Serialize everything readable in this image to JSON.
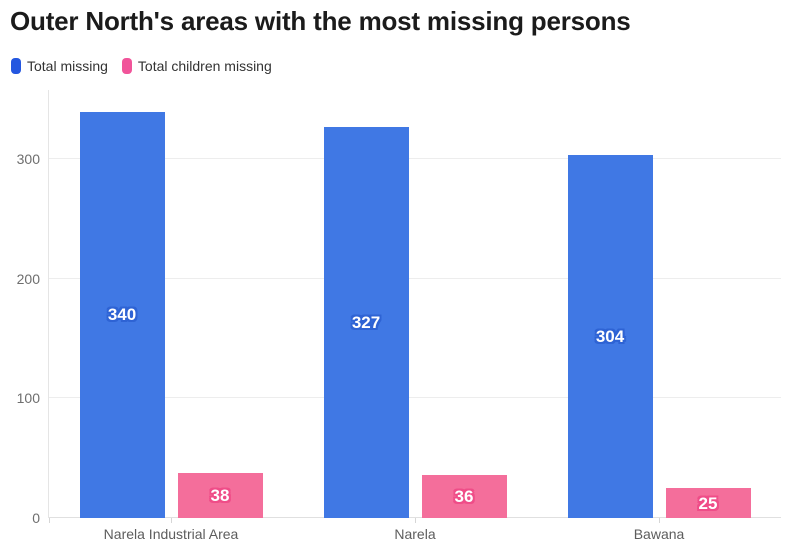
{
  "title": "Outer North's areas with the most missing persons",
  "legend": [
    {
      "label": "Total missing",
      "color": "#2457e0"
    },
    {
      "label": "Total children missing",
      "color": "#f1549a"
    }
  ],
  "chart_data": {
    "type": "bar",
    "title": "Outer North's areas with the most missing persons",
    "categories": [
      "Narela Industrial Area",
      "Narela",
      "Bawana"
    ],
    "series": [
      {
        "name": "Total missing",
        "color": "#4078e4",
        "label_outline": "#2e63d4",
        "values": [
          340,
          327,
          304
        ]
      },
      {
        "name": "Total children missing",
        "color": "#f46e9b",
        "label_outline": "#ef4d88",
        "values": [
          38,
          36,
          25
        ]
      }
    ],
    "yticks": [
      0,
      100,
      200,
      300
    ],
    "ylim": [
      0,
      358
    ],
    "xlabel": "",
    "ylabel": "",
    "grid": true,
    "legend_position": "top-left",
    "value_labels": true,
    "value_label_color": "#ffffff"
  }
}
